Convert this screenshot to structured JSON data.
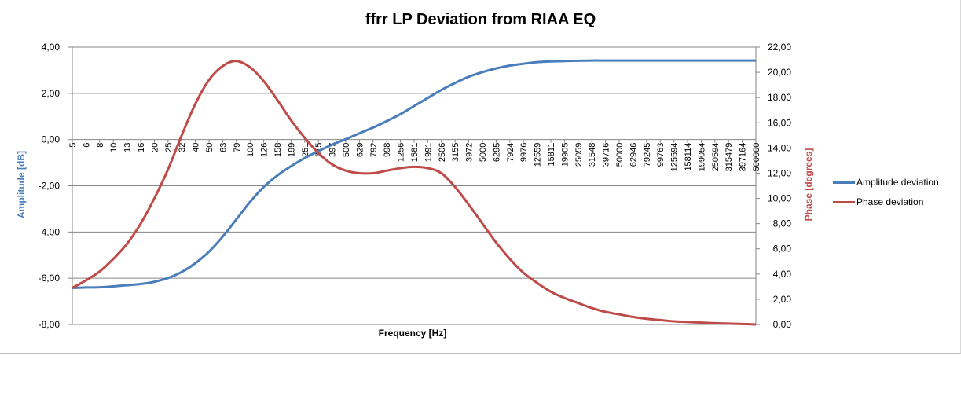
{
  "chart_data": {
    "type": "line",
    "title": "ffrr LP Deviation from RIAA EQ",
    "xlabel": "Frequency [Hz]",
    "ylabel": "Amplitude [dB]",
    "y2label": "Phase [degrees]",
    "ylim": [
      -8,
      4
    ],
    "y2lim": [
      0,
      22
    ],
    "yticks": [
      "4,00",
      "2,00",
      "0,00",
      "-2,00",
      "-4,00",
      "-6,00",
      "-8,00"
    ],
    "y2ticks": [
      "22,00",
      "20,00",
      "18,00",
      "16,00",
      "14,00",
      "12,00",
      "10,00",
      "8,00",
      "6,00",
      "4,00",
      "2,00",
      "0,00"
    ],
    "grid": true,
    "legend": "right",
    "colors": {
      "amplitude": "#4a7ebb",
      "phase": "#be4b48",
      "grid": "#868686"
    },
    "x_ticks": [
      "5",
      "6",
      "8",
      "10",
      "13",
      "16",
      "20",
      "25",
      "32",
      "40",
      "50",
      "63",
      "79",
      "100",
      "126",
      "158",
      "199",
      "251",
      "315",
      "397",
      "500",
      "629",
      "792",
      "998",
      "1256",
      "1581",
      "1991",
      "2506",
      "3155",
      "3972",
      "5000",
      "6295",
      "7924",
      "9976",
      "12559",
      "15811",
      "19905",
      "25059",
      "31548",
      "39716",
      "50000",
      "62946",
      "79245",
      "99763",
      "125594",
      "158114",
      "199054",
      "250594",
      "315479",
      "397164",
      "500000"
    ],
    "series": [
      {
        "name": "Amplitude deviation",
        "axis": "left",
        "values": [
          -6.42,
          -6.4,
          -6.39,
          -6.35,
          -6.3,
          -6.25,
          -6.15,
          -5.99,
          -5.73,
          -5.35,
          -4.85,
          -4.2,
          -3.45,
          -2.7,
          -2.05,
          -1.55,
          -1.15,
          -0.8,
          -0.5,
          -0.22,
          0.02,
          0.27,
          0.52,
          0.8,
          1.1,
          1.45,
          1.8,
          2.15,
          2.45,
          2.72,
          2.92,
          3.08,
          3.2,
          3.28,
          3.35,
          3.38,
          3.4,
          3.41,
          3.42,
          3.42,
          3.42,
          3.42,
          3.42,
          3.42,
          3.42,
          3.42,
          3.42,
          3.42,
          3.42,
          3.42,
          3.42
        ]
      },
      {
        "name": "Phase deviation",
        "axis": "right",
        "values": [
          2.9,
          3.5,
          4.2,
          5.2,
          6.4,
          8.0,
          10.0,
          12.3,
          15.0,
          17.5,
          19.4,
          20.5,
          20.9,
          20.4,
          19.3,
          17.8,
          16.2,
          14.8,
          13.6,
          12.7,
          12.2,
          12.0,
          12.0,
          12.2,
          12.4,
          12.5,
          12.4,
          12.0,
          10.9,
          9.5,
          8.0,
          6.5,
          5.2,
          4.1,
          3.3,
          2.6,
          2.1,
          1.7,
          1.3,
          1.0,
          0.8,
          0.6,
          0.45,
          0.35,
          0.25,
          0.2,
          0.15,
          0.1,
          0.07,
          0.04,
          0.0
        ]
      }
    ]
  }
}
